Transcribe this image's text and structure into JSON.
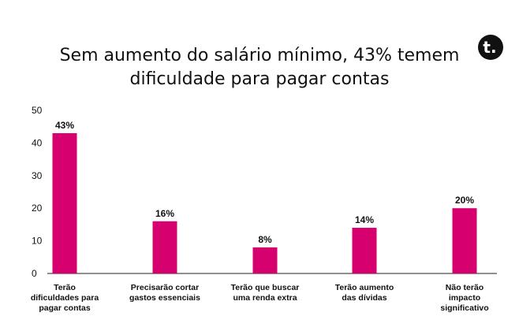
{
  "chart_data": {
    "type": "bar",
    "title_lines": [
      "Sem aumento do salário mínimo, 43% temem",
      "dificuldade para pagar contas"
    ],
    "categories": [
      [
        "Terão",
        "dificuldades para",
        "pagar contas"
      ],
      [
        "Precisarão cortar",
        "gastos essenciais"
      ],
      [
        "Terão que buscar",
        "uma renda extra"
      ],
      [
        "Terão aumento",
        "das dívidas"
      ],
      [
        "Não terão",
        "impacto",
        "significativo"
      ]
    ],
    "values": [
      43,
      16,
      8,
      14,
      20
    ],
    "value_labels": [
      "43%",
      "16%",
      "8%",
      "14%",
      "20%"
    ],
    "yticks": [
      0,
      10,
      20,
      30,
      40,
      50
    ],
    "ylim": [
      0,
      50
    ],
    "grid": false,
    "legend": "none",
    "bar_color": "#d6006e",
    "logo_text": "t."
  }
}
